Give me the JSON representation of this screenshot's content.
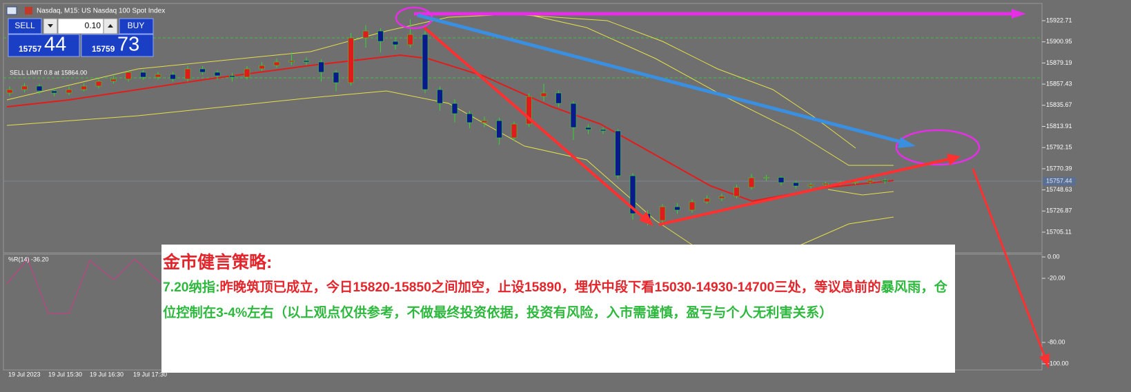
{
  "header": {
    "title": "Nasdaq, M15:  US Nasdaq 100 Spot Index"
  },
  "trade_panel": {
    "sell": "SELL",
    "buy": "BUY",
    "volume": "0.10",
    "bid_big": "15757",
    "bid_small": "44",
    "ask_big": "15759",
    "ask_small": "73"
  },
  "order_label": "SELL LIMIT 0.8 at 15864.00",
  "price_axis": {
    "ticks": [
      15922.71,
      15900.95,
      15879.19,
      15857.43,
      15835.67,
      15813.91,
      15792.15,
      15770.39,
      15748.63,
      15726.87,
      15705.11
    ],
    "current": 15757.44
  },
  "candles": [
    [
      15848.3,
      15855.0,
      15845.0,
      15851.8
    ],
    [
      15851.8,
      15858.5,
      15849.0,
      15855.4
    ],
    [
      15855.4,
      15858.0,
      15847.0,
      15850.4
    ],
    [
      15850.4,
      15853.0,
      15845.0,
      15848.3
    ],
    [
      15848.3,
      15855.0,
      15846.0,
      15851.8
    ],
    [
      15851.8,
      15858.0,
      15850.0,
      15855.4
    ],
    [
      15855.4,
      15863.0,
      15853.0,
      15860.3
    ],
    [
      15860.3,
      15866.0,
      15858.0,
      15862.5
    ],
    [
      15862.5,
      15872.0,
      15860.0,
      15869.6
    ],
    [
      15869.6,
      15872.0,
      15862.0,
      15864.6
    ],
    [
      15864.6,
      15870.0,
      15862.0,
      15867.4
    ],
    [
      15867.4,
      15870.0,
      15860.0,
      15862.5
    ],
    [
      15862.5,
      15876.0,
      15860.0,
      15873.1
    ],
    [
      15873.1,
      15876.0,
      15867.0,
      15869.6
    ],
    [
      15869.6,
      15872.0,
      15862.0,
      15866.0
    ],
    [
      15866.0,
      15869.0,
      15860.0,
      15864.6
    ],
    [
      15864.6,
      15876.0,
      15862.0,
      15873.1
    ],
    [
      15873.1,
      15880.0,
      15871.0,
      15876.6
    ],
    [
      15876.6,
      15884.0,
      15874.0,
      15880.2
    ],
    [
      15880.2,
      15890.0,
      15877.0,
      15881.6
    ],
    [
      15881.6,
      15885.0,
      15877.0,
      15880.2
    ],
    [
      15880.2,
      15883.0,
      15860.0,
      15869.6
    ],
    [
      15869.6,
      15872.0,
      15850.0,
      15858.9
    ],
    [
      15858.9,
      15910.0,
      15856.0,
      15905.0
    ],
    [
      15905.0,
      15918.0,
      15895.0,
      15912.1
    ],
    [
      15912.1,
      15915.0,
      15890.0,
      15901.4
    ],
    [
      15901.4,
      15906.0,
      15893.0,
      15897.9
    ],
    [
      15897.9,
      15924.0,
      15895.0,
      15908.5
    ],
    [
      15908.5,
      15912.0,
      15848.0,
      15851.8
    ],
    [
      15851.8,
      15855.0,
      15830.0,
      15837.6
    ],
    [
      15837.6,
      15842.0,
      15818.0,
      15827.0
    ],
    [
      15827.0,
      15830.0,
      15812.0,
      15817.8
    ],
    [
      15817.8,
      15824.0,
      15813.0,
      15819.9
    ],
    [
      15819.9,
      15823.0,
      15795.0,
      15802.2
    ],
    [
      15802.2,
      15819.0,
      15799.0,
      15816.4
    ],
    [
      15816.4,
      15848.0,
      15813.0,
      15844.7
    ],
    [
      15844.7,
      15858.0,
      15840.0,
      15848.3
    ],
    [
      15848.3,
      15851.0,
      15834.0,
      15837.6
    ],
    [
      15837.6,
      15840.0,
      15800.0,
      15812.8
    ],
    [
      15812.8,
      15816.0,
      15806.0,
      15810.7
    ],
    [
      15810.7,
      15813.0,
      15806.0,
      15809.3
    ],
    [
      15809.3,
      15811.0,
      15760.0,
      15763.2
    ],
    [
      15763.2,
      15766.0,
      15718.0,
      15724.2
    ],
    [
      15724.2,
      15728.0,
      15712.0,
      15717.1
    ],
    [
      15717.1,
      15734.0,
      15714.0,
      15731.3
    ],
    [
      15731.3,
      15735.0,
      15724.0,
      15727.8
    ],
    [
      15727.8,
      15739.0,
      15725.0,
      15736.3
    ],
    [
      15736.3,
      15743.0,
      15734.0,
      15739.8
    ],
    [
      15739.8,
      15745.0,
      15737.0,
      15742.0
    ],
    [
      15742.0,
      15754.0,
      15740.0,
      15751.2
    ],
    [
      15751.2,
      15765.0,
      15749.0,
      15761.1
    ],
    [
      15761.1,
      15764.0,
      15758.0,
      15761.5
    ],
    [
      15761.5,
      15763.0,
      15753.0,
      15756.1
    ],
    [
      15756.1,
      15758.0,
      15750.0,
      15752.6
    ],
    [
      15752.6,
      15756.0,
      15750.0,
      15754.0
    ],
    [
      15754.0,
      15757.0,
      15752.0,
      15755.4
    ],
    [
      15755.4,
      15758.0,
      15753.0,
      15756.1
    ],
    [
      15756.1,
      15759.0,
      15754.0,
      15756.8
    ],
    [
      15756.8,
      15760.0,
      15755.0,
      15758.3
    ],
    [
      15758.3,
      15760.0,
      15755.0,
      15757.4
    ]
  ],
  "indicator": {
    "label": "%R(14) -36.20",
    "ticks": [
      {
        "value": 0,
        "label": "0.00"
      },
      {
        "value": -20,
        "label": "-20.00"
      },
      {
        "value": -80,
        "label": "-80.00"
      },
      {
        "value": -100,
        "label": "-100.00"
      }
    ]
  },
  "time_axis": {
    "labels": [
      "19 Jul 2023",
      "19 Jul 15:30",
      "19 Jul 16:30",
      "19 Jul 17:30"
    ]
  },
  "note": {
    "title": "金市健言策略:",
    "segments": [
      {
        "text": "7.20纳指:",
        "color": "#2eb83e"
      },
      {
        "text": "昨晚筑顶已成立，今日15820-15850之间加空，止设15890，埋伏中段下看15030-14930-14700三处，等议息前的",
        "color": "#e3262c"
      },
      {
        "text": "暴风雨，仓位控制在3-4%左右（以上观点仅供参考，不做最终投资依据，投资有风险，入市需谨慎，盈亏与个人无利害关系）",
        "color": "#2eb83e"
      }
    ]
  }
}
